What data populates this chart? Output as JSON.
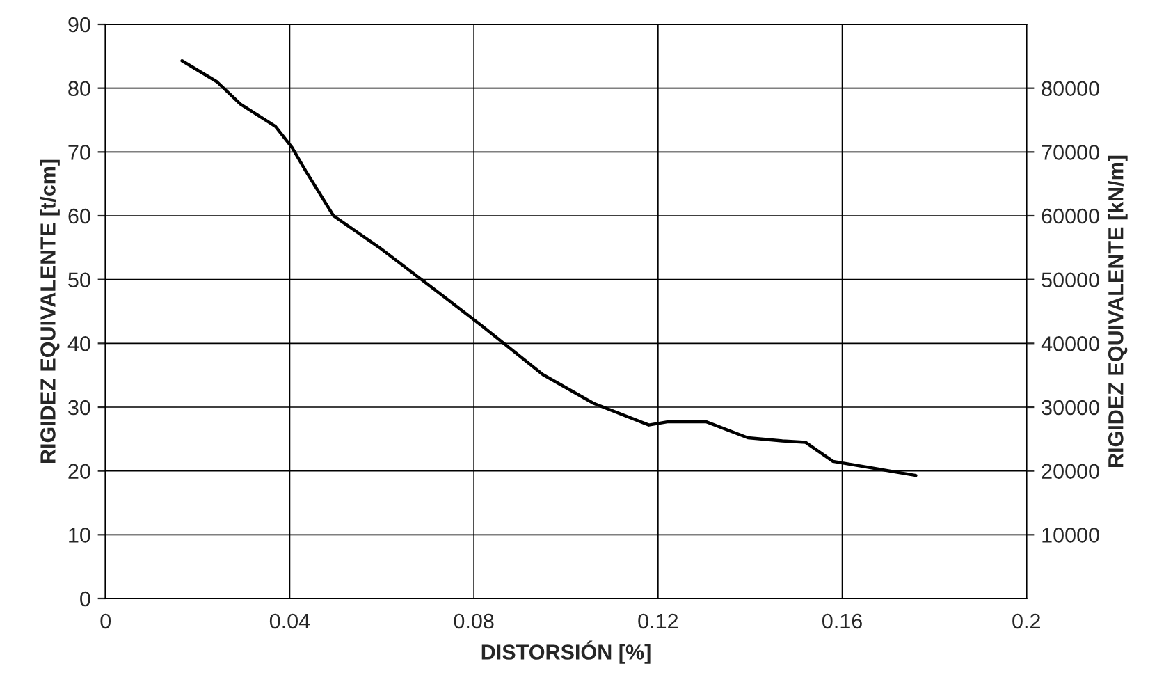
{
  "chart_data": {
    "type": "line",
    "xlabel": "DISTORSIÓN [%]",
    "ylabel": "RIGIDEZ EQUIVALENTE [t/cm]",
    "y2label": "RIGIDEZ EQUIVALENTE [kN/m]",
    "xlim": [
      0,
      0.2
    ],
    "xticks": [
      0,
      0.04,
      0.08,
      0.12,
      0.16,
      0.2
    ],
    "ylim": [
      0,
      90
    ],
    "yticks": [
      0,
      10,
      20,
      30,
      40,
      50,
      60,
      70,
      80,
      90
    ],
    "y2lim": [
      0,
      90000
    ],
    "y2ticks": [
      10000,
      20000,
      30000,
      40000,
      50000,
      60000,
      70000,
      80000
    ],
    "grid": true,
    "legend": false,
    "marker": "none",
    "line_style": "solid",
    "series": [
      {
        "color": "#000000",
        "x": [
          0.0166,
          0.0242,
          0.0293,
          0.0369,
          0.0405,
          0.0435,
          0.0495,
          0.0595,
          0.073,
          0.082,
          0.095,
          0.106,
          0.118,
          0.122,
          0.1305,
          0.1395,
          0.147,
          0.152,
          0.158,
          0.176
        ],
        "values": [
          84.3,
          81,
          77.5,
          74,
          70.7,
          67,
          60,
          55,
          47.6,
          42.6,
          35.1,
          30.6,
          27.2,
          27.7,
          27.7,
          25.2,
          24.7,
          24.5,
          21.5,
          19.3
        ]
      }
    ]
  }
}
